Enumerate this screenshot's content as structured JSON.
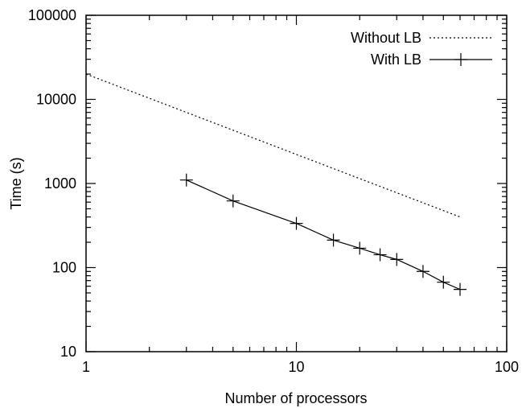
{
  "chart_data": {
    "type": "line",
    "xlabel": "Number of processors",
    "ylabel": "Time (s)",
    "xscale": "log",
    "yscale": "log",
    "xlim": [
      1,
      100
    ],
    "ylim": [
      10,
      100000
    ],
    "x_ticks": [
      1,
      10,
      100
    ],
    "x_tick_labels": [
      "1",
      "10",
      "100"
    ],
    "y_ticks": [
      10,
      100,
      1000,
      10000,
      100000
    ],
    "y_tick_labels": [
      "10",
      "100",
      "1000",
      "10000",
      "100000"
    ],
    "grid": false,
    "legend_position": "top-right",
    "series": [
      {
        "name": "Without LB",
        "style": "dotted",
        "marker": "none",
        "color": "#000000",
        "x": [
          1,
          60
        ],
        "y": [
          20000,
          400
        ]
      },
      {
        "name": "With LB",
        "style": "solid",
        "marker": "plus",
        "color": "#000000",
        "x": [
          3,
          5,
          10,
          15,
          20,
          25,
          30,
          40,
          50,
          60
        ],
        "y": [
          1100,
          620,
          335,
          212,
          170,
          142,
          125,
          90,
          67,
          55
        ]
      }
    ]
  }
}
